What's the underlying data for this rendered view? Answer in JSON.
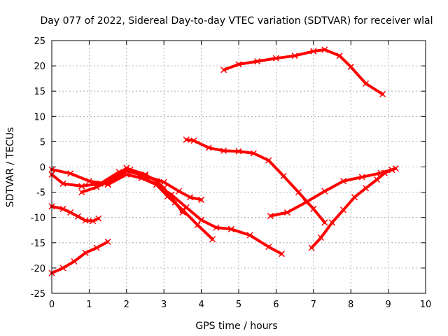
{
  "chart_data": {
    "type": "scatter",
    "title": "Day 077 of 2022, Sidereal Day-to-day VTEC variation (SDTVAR) for receiver wlal",
    "xlabel": "GPS time / hours",
    "ylabel": "SDTVAR / TECUs",
    "xlim": [
      0,
      10
    ],
    "ylim": [
      -25,
      25
    ],
    "xticks": [
      0,
      1,
      2,
      3,
      4,
      5,
      6,
      7,
      8,
      9,
      10
    ],
    "yticks": [
      -25,
      -20,
      -15,
      -10,
      -5,
      0,
      5,
      10,
      15,
      20,
      25
    ],
    "grid": true,
    "color": "#ff0000",
    "series": [
      {
        "name": "s1",
        "x": [
          0.0,
          0.3,
          0.6,
          0.9,
          1.2,
          1.5
        ],
        "y": [
          -21.0,
          -20.0,
          -18.7,
          -17.0,
          -16.0,
          -14.8
        ]
      },
      {
        "name": "s2",
        "x": [
          0.0,
          0.3,
          0.5,
          0.7,
          0.9,
          1.1,
          1.25
        ],
        "y": [
          -7.8,
          -8.3,
          -9.0,
          -9.8,
          -10.6,
          -10.7,
          -10.2
        ]
      },
      {
        "name": "s3",
        "x": [
          0.0,
          0.5,
          1.0,
          1.5,
          2.0,
          2.5,
          3.0,
          3.4,
          3.7,
          4.0
        ],
        "y": [
          -0.5,
          -1.3,
          -2.8,
          -3.4,
          -0.8,
          -1.8,
          -3.0,
          -4.8,
          -6.0,
          -6.5
        ]
      },
      {
        "name": "s4",
        "x": [
          0.0,
          0.3,
          0.8,
          1.3,
          1.8,
          2.1,
          2.5,
          2.8,
          3.0,
          3.3,
          3.5
        ],
        "y": [
          -1.5,
          -3.3,
          -3.8,
          -3.3,
          -1.0,
          -0.5,
          -1.5,
          -2.8,
          -4.2,
          -7.0,
          -9.0
        ]
      },
      {
        "name": "s5",
        "x": [
          0.8,
          1.2,
          1.6,
          2.0,
          2.4,
          2.8,
          3.1,
          3.5,
          3.9,
          4.3
        ],
        "y": [
          -5.0,
          -4.0,
          -2.5,
          -0.2,
          -1.8,
          -3.5,
          -5.8,
          -8.5,
          -11.5,
          -14.3
        ]
      },
      {
        "name": "s6",
        "x": [
          1.5,
          2.0,
          2.4,
          2.8,
          3.2,
          3.6,
          4.0,
          4.4,
          4.8,
          5.3,
          5.8,
          6.15
        ],
        "y": [
          -3.5,
          -1.5,
          -2.2,
          -3.5,
          -5.5,
          -8.0,
          -10.5,
          -12.0,
          -12.3,
          -13.5,
          -15.8,
          -17.2
        ]
      },
      {
        "name": "s7",
        "x": [
          3.6,
          3.8,
          4.2,
          4.6,
          5.0,
          5.4,
          5.8,
          6.2,
          6.6,
          7.0,
          7.3
        ],
        "y": [
          5.4,
          5.2,
          3.8,
          3.2,
          3.1,
          2.7,
          1.3,
          -1.8,
          -5.0,
          -8.3,
          -11.0
        ]
      },
      {
        "name": "s8",
        "x": [
          4.6,
          5.0,
          5.5,
          6.0,
          6.5,
          7.0,
          7.3,
          7.7,
          8.0,
          8.4,
          8.85
        ],
        "y": [
          19.2,
          20.3,
          20.9,
          21.5,
          22.0,
          22.9,
          23.2,
          22.0,
          19.8,
          16.5,
          14.4
        ]
      },
      {
        "name": "s9",
        "x": [
          5.85,
          6.3,
          6.8,
          7.3,
          7.8,
          8.3,
          8.8,
          9.2
        ],
        "y": [
          -9.7,
          -9.0,
          -7.0,
          -4.8,
          -2.8,
          -2.0,
          -1.2,
          -0.3
        ]
      },
      {
        "name": "s10",
        "x": [
          6.95,
          7.2,
          7.5,
          7.8,
          8.1,
          8.4,
          8.7,
          8.9,
          9.1
        ],
        "y": [
          -16.0,
          -14.0,
          -11.0,
          -8.5,
          -6.0,
          -4.2,
          -2.5,
          -1.2,
          -0.6
        ]
      }
    ]
  }
}
